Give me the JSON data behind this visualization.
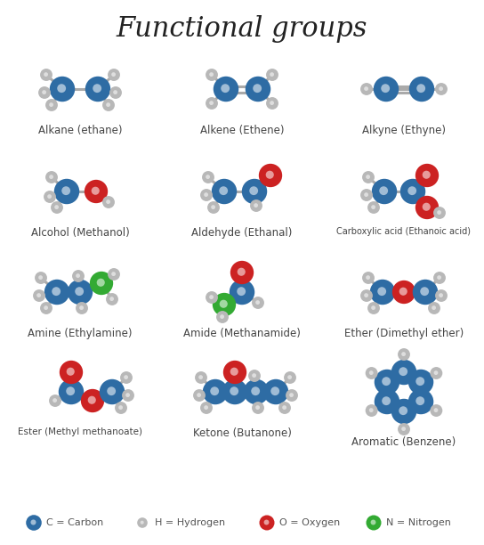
{
  "title": "Functional groups",
  "title_fontsize": 22,
  "background_color": "#ffffff",
  "carbon_color": "#2e6ca4",
  "hydrogen_color": "#b8b8b8",
  "oxygen_color": "#cc2222",
  "nitrogen_color": "#33aa33",
  "bond_color": "#aaaaaa",
  "legend_items": [
    {
      "label": "C = Carbon",
      "color": "#2e6ca4",
      "size": 160
    },
    {
      "label": "H = Hydrogen",
      "color": "#b8b8b8",
      "size": 70
    },
    {
      "label": "O = Oxygen",
      "color": "#cc2222",
      "size": 150
    },
    {
      "label": "N = Nitrogen",
      "color": "#33aa33",
      "size": 150
    }
  ]
}
